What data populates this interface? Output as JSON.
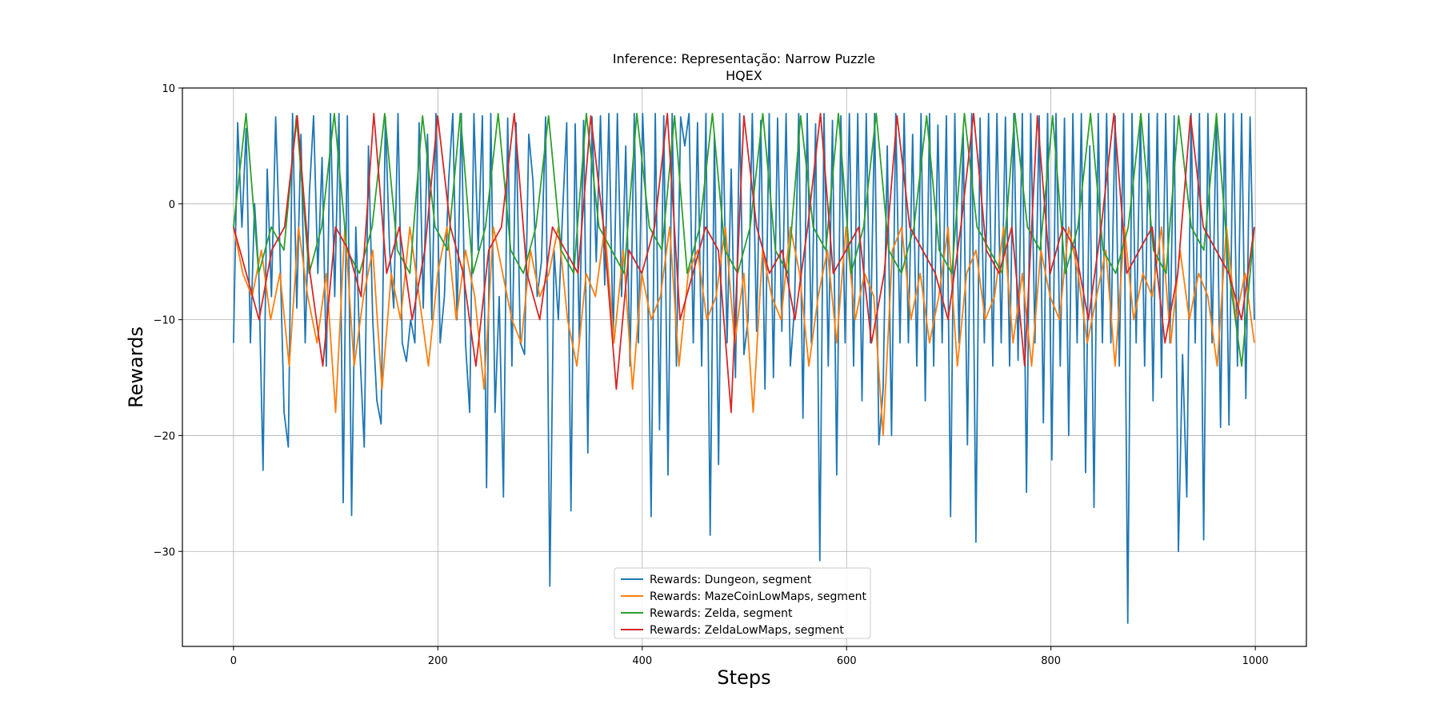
{
  "chart_data": {
    "type": "line",
    "title": "Inference: Representação: Narrow Puzzle",
    "subtitle": "HQEX",
    "xlabel": "Steps",
    "ylabel": "Rewards",
    "xlim": [
      -50,
      1050
    ],
    "ylim": [
      -38.2,
      10
    ],
    "x_ticks": [
      0,
      200,
      400,
      600,
      800,
      1000
    ],
    "y_ticks": [
      10,
      0,
      -10,
      -20,
      -30
    ],
    "grid": true,
    "legend_position": "lower center",
    "n_points": 1000,
    "series": [
      {
        "name": "Rewards: Dungeon, segment",
        "color": "#1f77b4",
        "values": [
          -12,
          7,
          -2,
          6.5,
          -12,
          0,
          -6,
          -23,
          3,
          -8,
          7.5,
          -4,
          -18,
          -21,
          7.8,
          -9,
          6,
          -12,
          1,
          7.6,
          -6,
          4,
          -14,
          7.8,
          -8,
          7.8,
          -25.8,
          7.6,
          -26.9,
          -2,
          -13,
          -21,
          5,
          -10,
          -17,
          -19,
          7.5,
          -4,
          -9,
          7.8,
          -12,
          -13.6,
          -10,
          -12,
          7,
          -9,
          6,
          -10,
          7.8,
          -12,
          -8,
          2,
          7.8,
          -10,
          7.8,
          -12,
          -18,
          7.8,
          -4,
          7.6,
          -24.5,
          7.8,
          -18,
          -8,
          -25.3,
          7.4,
          -14,
          7,
          -12,
          -13,
          6,
          2,
          -8,
          -5,
          7.5,
          -33,
          -4,
          -10,
          -1,
          7,
          -26.5,
          6.9,
          -12,
          7.2,
          -21.5,
          7.5,
          -5,
          7.6,
          -7,
          7.8,
          -12,
          7.8,
          -8,
          5,
          -14,
          7.8,
          -12,
          7.8,
          -2,
          -27,
          7.8,
          -19.5,
          7.6,
          -23.4,
          7.8,
          -14,
          7.5,
          5,
          7.8,
          -12,
          7,
          -14,
          7.8,
          -28.6,
          6,
          -22.5,
          7.8,
          -12,
          3,
          -15,
          7.8,
          -13,
          -10,
          7.8,
          -11,
          7.2,
          -16,
          7.8,
          -15,
          7.4,
          -11,
          7.8,
          -14,
          -9,
          7.8,
          -18.5,
          7.8,
          -12,
          6.9,
          -30.8,
          7.8,
          -14,
          7.2,
          -23.4,
          7.6,
          -12,
          7.8,
          -14,
          7.8,
          -17,
          7.8,
          -12,
          7.8,
          -20.8,
          -16,
          5,
          -20,
          7.8,
          -12,
          7.8,
          -12,
          6,
          -14,
          7.8,
          -17,
          7.8,
          -14,
          6.8,
          -12,
          7.6,
          -27,
          7.8,
          -12,
          6.2,
          -20.8,
          7.8,
          -29.2,
          7.4,
          -12,
          7.8,
          -14,
          7.8,
          -12,
          7.5,
          -14,
          7.8,
          -13.5,
          7.8,
          -24.9,
          7.8,
          -12,
          7.6,
          -18.9,
          7.8,
          -22.1,
          7.8,
          -14,
          7.4,
          -20,
          7.8,
          -12,
          7.8,
          -23.2,
          5,
          -26.2,
          7.8,
          -12,
          7.8,
          -12,
          7.6,
          -14,
          7.8,
          -36.2,
          7.8,
          -12,
          7.6,
          -14,
          7.8,
          -17,
          7.8,
          -15,
          7.8,
          -12,
          7.6,
          -30,
          -13,
          -25.3,
          7.8,
          -12,
          7.8,
          -29,
          7.8,
          -12,
          7.6,
          -19.3,
          7.8,
          -19.1,
          7.8,
          -14,
          7.8,
          -16.8,
          7.5,
          -10
        ]
      },
      {
        "name": "Rewards: MazeCoinLowMaps, segment",
        "color": "#ff7f0e",
        "values": [
          -2,
          -6,
          -8,
          -4,
          -10,
          -6,
          -14,
          -2,
          -8,
          -12,
          -6,
          -18,
          -2,
          -14,
          -8,
          -4,
          -16,
          -6,
          -10,
          -2,
          -8,
          -14,
          -6,
          -2,
          -10,
          -4,
          -8,
          -16,
          -2,
          -6,
          -10,
          -12,
          -4,
          -8,
          -6,
          -2,
          -10,
          -14,
          -6,
          -8,
          -2,
          -12,
          -4,
          -16,
          -6,
          -10,
          -8,
          -2,
          -14,
          -6,
          -4,
          -10,
          -8,
          -2,
          -12,
          -6,
          -18,
          -4,
          -8,
          -10,
          -2,
          -6,
          -14,
          -8,
          -4,
          -12,
          -2,
          -10,
          -6,
          -8,
          -20,
          -4,
          -2,
          -10,
          -6,
          -12,
          -8,
          -2,
          -14,
          -6,
          -4,
          -10,
          -8,
          -2,
          -12,
          -6,
          -14,
          -4,
          -8,
          -10,
          -2,
          -6,
          -12,
          -8,
          -4,
          -14,
          -2,
          -10,
          -6,
          -8,
          -2,
          -12,
          -4,
          -10,
          -6,
          -8,
          -14,
          -2,
          -10,
          -6,
          -12
        ]
      },
      {
        "name": "Rewards: Zelda, segment",
        "color": "#2ca02c",
        "values": [
          -2,
          7.8,
          -6,
          -2,
          -4,
          7.6,
          -6,
          -2,
          7.8,
          -4,
          -6,
          -2,
          7.8,
          -4,
          -6,
          7.6,
          -2,
          -4,
          7.8,
          -6,
          -2,
          7.8,
          -4,
          -6,
          -2,
          7.6,
          -4,
          -6,
          7.8,
          -2,
          -4,
          -6,
          7.8,
          -2,
          -4,
          7.6,
          -6,
          -2,
          7.8,
          -4,
          -6,
          -2,
          7.8,
          -4,
          -6,
          7.6,
          -2,
          -4,
          7.8,
          -6,
          -2,
          7.8,
          -4,
          -6,
          -2,
          7.6,
          -4,
          -6,
          7.8,
          -2,
          -4,
          -6,
          7.8,
          -2,
          -4,
          7.6,
          -6,
          -2,
          7.8,
          -4,
          -6,
          -2,
          7.8,
          -4,
          -6,
          7.6,
          -2,
          -4,
          7.8,
          -6,
          -14,
          -2
        ]
      },
      {
        "name": "Rewards: ZeldaLowMaps, segment",
        "color": "#d62728",
        "values": [
          -2,
          -6,
          -10,
          -4,
          -2,
          7.6,
          -6,
          -14,
          -2,
          -4,
          -8,
          7.8,
          -6,
          -2,
          -10,
          -4,
          7.6,
          -2,
          -6,
          -14,
          -4,
          -2,
          7.8,
          -6,
          -10,
          -2,
          -4,
          -6,
          7.6,
          -2,
          -16,
          -4,
          -6,
          -2,
          7.8,
          -10,
          -6,
          -2,
          -4,
          -18,
          7.6,
          -2,
          -6,
          -4,
          -10,
          -2,
          7.8,
          -6,
          -4,
          -2,
          -12,
          -6,
          7.6,
          -2,
          -4,
          -6,
          -10,
          -2,
          7.8,
          -4,
          -6,
          -2,
          -14,
          7.6,
          -6,
          -2,
          -4,
          -10,
          -2,
          7.8,
          -6,
          -4,
          -2,
          -12,
          -6,
          7.6,
          -2,
          -4,
          -6,
          -10,
          -2
        ]
      }
    ]
  }
}
